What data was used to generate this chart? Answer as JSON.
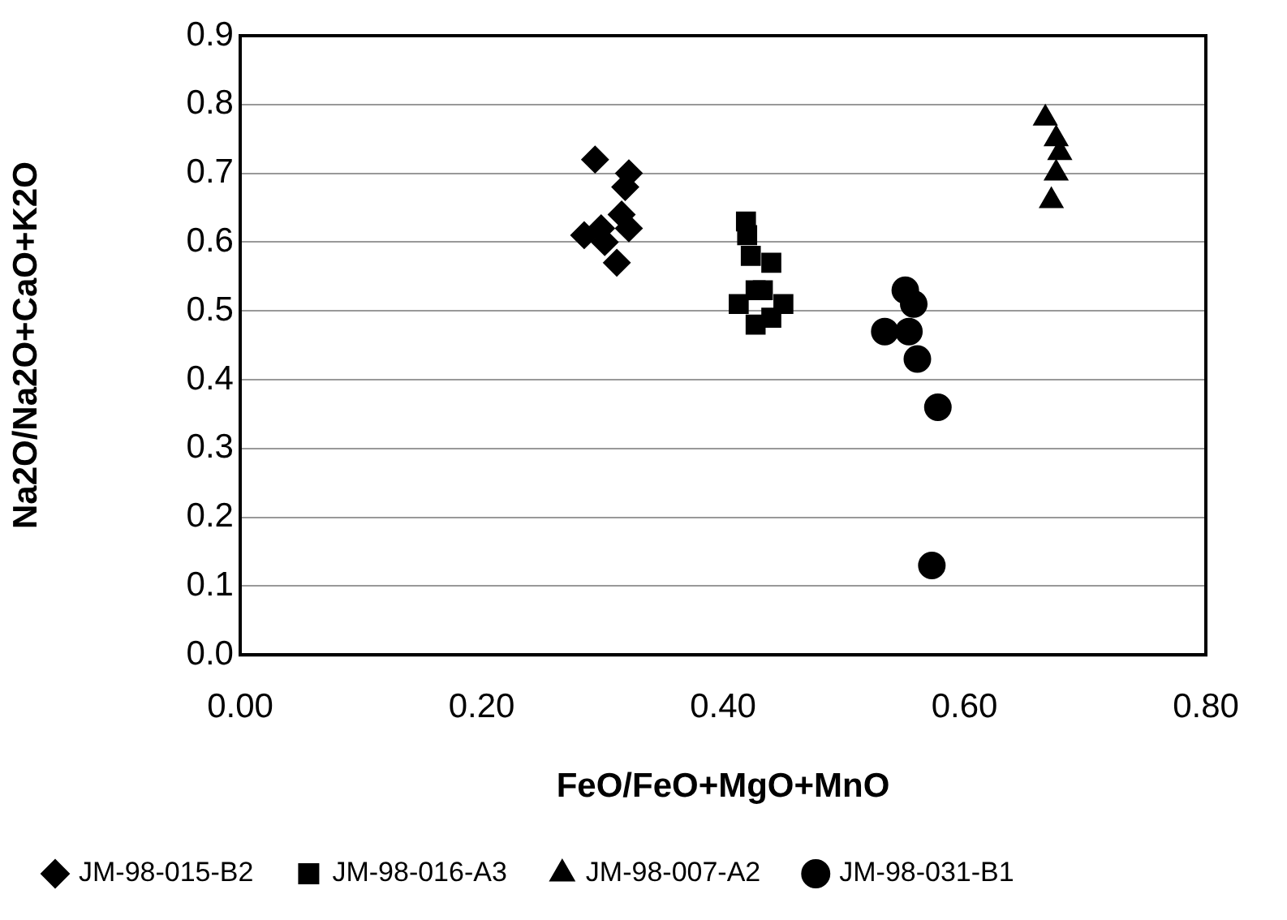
{
  "chart_data": {
    "type": "scatter",
    "xlabel": "FeO/FeO+MgO+MnO",
    "ylabel": "Na2O/Na2O+CaO+K2O",
    "xlim": [
      0,
      0.8
    ],
    "xticks": [
      {
        "value": 0,
        "label": "0.00"
      },
      {
        "value": 0.2,
        "label": "0.20"
      },
      {
        "value": 0.4,
        "label": "0.40"
      },
      {
        "value": 0.6,
        "label": "0.60"
      },
      {
        "value": 0.8,
        "label": "0.80"
      }
    ],
    "ylim": [
      0,
      0.9
    ],
    "yticks": [
      {
        "value": 0,
        "label": "0.0"
      },
      0.1,
      0.2,
      0.3,
      0.4,
      0.5,
      0.6,
      0.7,
      0.8,
      0.9
    ],
    "grid": "y",
    "legend": "bottom",
    "series": [
      {
        "name": "JM-98-015-B2",
        "color": "#000000",
        "marker": "diamond",
        "x": [
          0.294,
          0.322,
          0.319,
          0.285,
          0.302,
          0.312,
          0.322,
          0.316,
          0.299
        ],
        "values": [
          0.72,
          0.7,
          0.68,
          0.61,
          0.6,
          0.57,
          0.62,
          0.64,
          0.62
        ]
      },
      {
        "name": "JM-98-016-A3",
        "color": "#000000",
        "marker": "square",
        "x": [
          0.419,
          0.42,
          0.413,
          0.44,
          0.427,
          0.427,
          0.44,
          0.45,
          0.433,
          0.423
        ],
        "values": [
          0.63,
          0.61,
          0.51,
          0.57,
          0.53,
          0.48,
          0.49,
          0.51,
          0.53,
          0.58
        ]
      },
      {
        "name": "JM-98-007-A2",
        "color": "#000000",
        "marker": "triangle",
        "x": [
          0.667,
          0.676,
          0.679,
          0.676,
          0.672
        ],
        "values": [
          0.78,
          0.75,
          0.73,
          0.7,
          0.66
        ]
      },
      {
        "name": "JM-98-031-B1",
        "color": "#000000",
        "marker": "circle",
        "x": [
          0.534,
          0.551,
          0.558,
          0.554,
          0.561,
          0.578,
          0.573
        ],
        "values": [
          0.47,
          0.53,
          0.51,
          0.47,
          0.43,
          0.36,
          0.13
        ]
      }
    ]
  }
}
